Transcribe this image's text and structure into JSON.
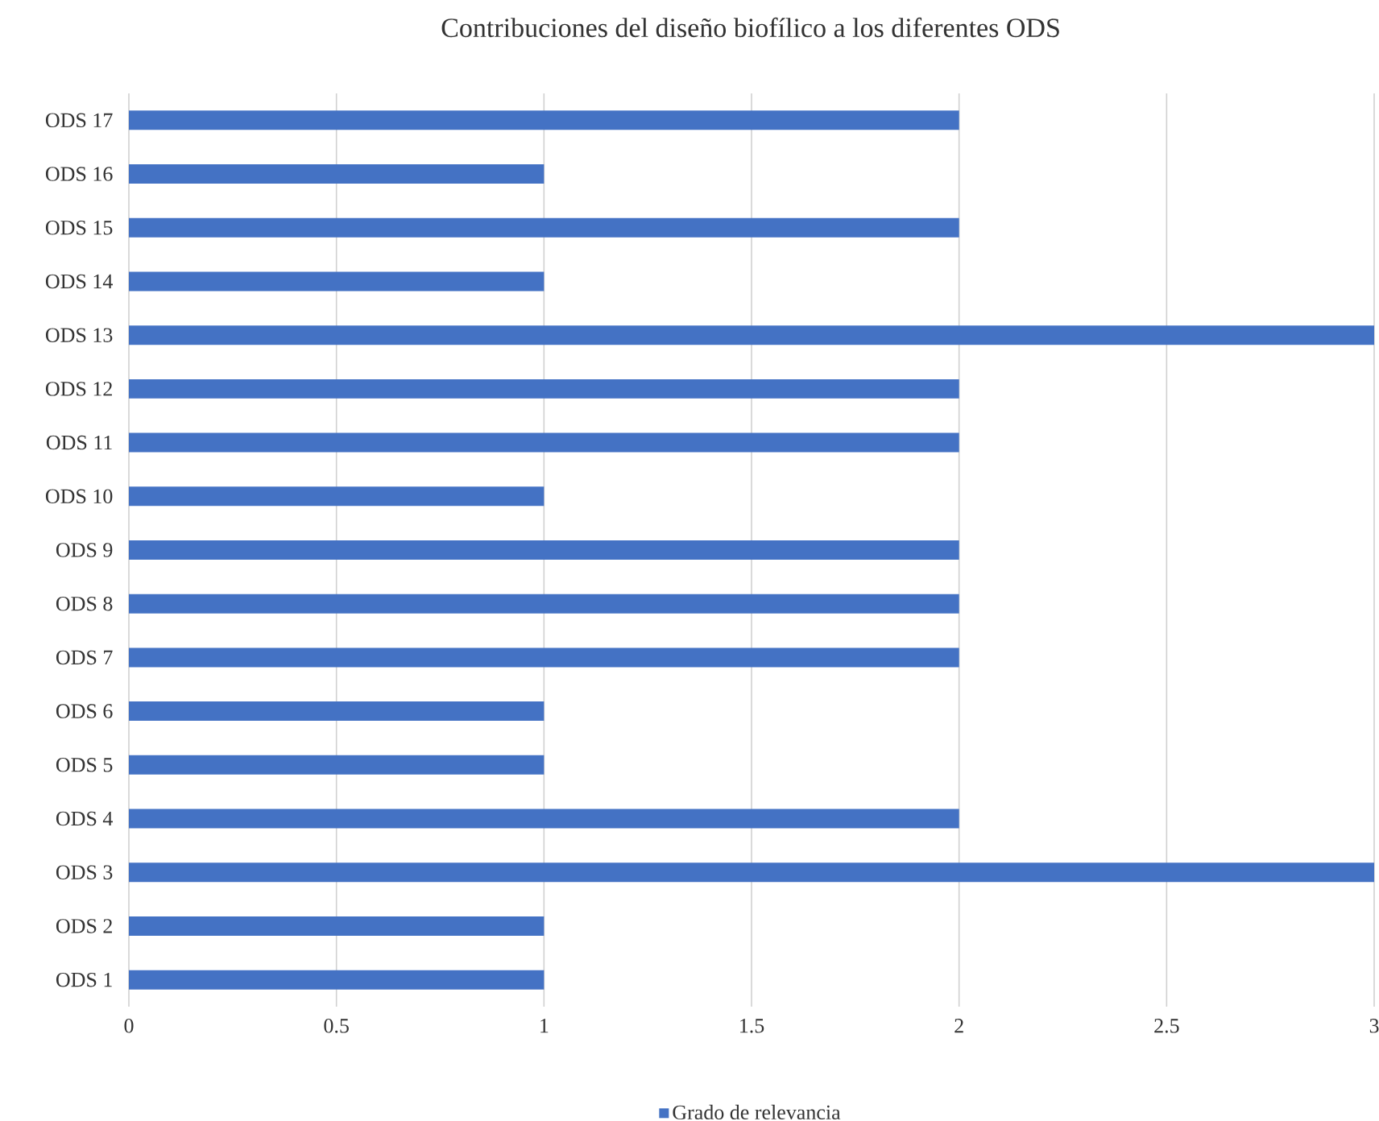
{
  "chart_data": {
    "type": "bar",
    "orientation": "horizontal",
    "title": "Contribuciones del diseño biofílico a los diferentes ODS",
    "categories": [
      "ODS 17",
      "ODS 16",
      "ODS 15",
      "ODS 14",
      "ODS 13",
      "ODS 12",
      "ODS 11",
      "ODS 10",
      "ODS 9",
      "ODS 8",
      "ODS 7",
      "ODS 6",
      "ODS 5",
      "ODS 4",
      "ODS 3",
      "ODS 2",
      "ODS 1"
    ],
    "series": [
      {
        "name": "Grado de relevancia",
        "color": "#4472c4",
        "values": [
          2,
          1,
          2,
          1,
          3,
          2,
          2,
          1,
          2,
          2,
          2,
          1,
          1,
          2,
          3,
          1,
          1
        ]
      }
    ],
    "xlim": [
      0,
      3
    ],
    "xticks": [
      0,
      0.5,
      1,
      1.5,
      2,
      2.5,
      3
    ],
    "grid": "x",
    "legend": "bottom"
  }
}
